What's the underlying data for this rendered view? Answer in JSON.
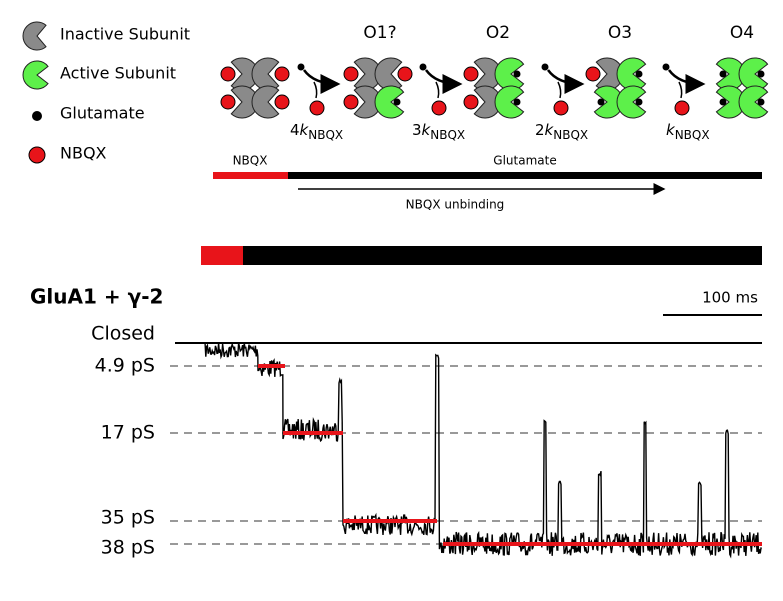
{
  "legend": [
    {
      "label": "Inactive Subunit"
    },
    {
      "label": "Active Subunit"
    },
    {
      "label": "Glutamate"
    },
    {
      "label": "NBQX"
    }
  ],
  "states": [
    "O1?",
    "O2",
    "O3",
    "O4"
  ],
  "rates": [
    {
      "coefficient": "4",
      "symbol": "k",
      "subscript": "NBQX"
    },
    {
      "coefficient": "3",
      "symbol": "k",
      "subscript": "NBQX"
    },
    {
      "coefficient": "2",
      "symbol": "k",
      "subscript": "NBQX"
    },
    {
      "symbol": "k",
      "subscript": "NBQX"
    }
  ],
  "protocol": {
    "drug": "NBQX",
    "agonist": "Glutamate",
    "arrow": "NBQX unbinding"
  },
  "trace": {
    "title": "GluA1 + γ-2",
    "scale_bar": "100 ms",
    "levels": [
      "Closed",
      "4.9 pS",
      "17 pS",
      "35 pS",
      "38 pS"
    ]
  }
}
